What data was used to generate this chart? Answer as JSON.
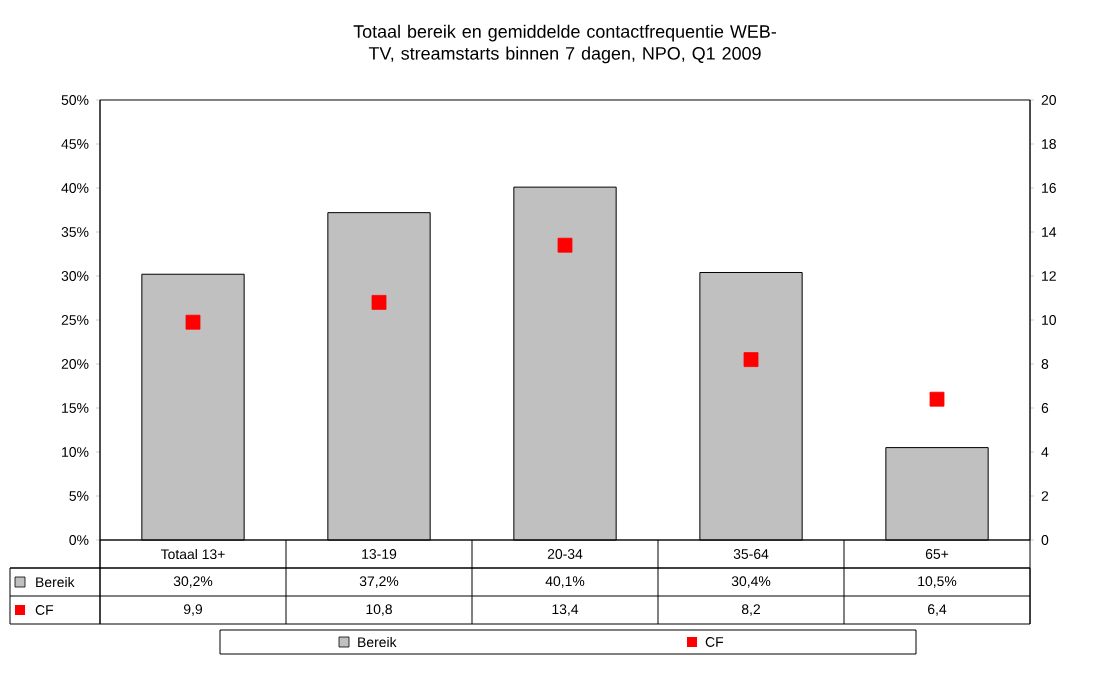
{
  "chart_data": {
    "type": "bar",
    "title": "Totaal bereik en gemiddelde contactfrequentie WEB-TV, streamstarts binnen 7 dagen, NPO, Q1 2009",
    "categories": [
      "Totaal 13+",
      "13-19",
      "20-34",
      "35-64",
      "65+"
    ],
    "series": [
      {
        "name": "Bereik",
        "color": "#c0c0c0",
        "values": [
          30.2,
          37.2,
          40.1,
          30.4,
          10.5
        ],
        "value_labels": [
          "30,2%",
          "37,2%",
          "40,1%",
          "30,4%",
          "10,5%"
        ]
      },
      {
        "name": "CF",
        "type": "scatter",
        "axis": "y2",
        "marker": "square",
        "color": "#ff0000",
        "values": [
          9.9,
          10.8,
          13.4,
          8.2,
          6.4
        ],
        "value_labels": [
          "9,9",
          "10,8",
          "13,4",
          "8,2",
          "6,4"
        ]
      }
    ],
    "ylim": [
      0,
      50
    ],
    "yticks": [
      {
        "value": 0,
        "label": "0%"
      },
      {
        "value": 5,
        "label": "5%"
      },
      {
        "value": 10,
        "label": "10%"
      },
      {
        "value": 15,
        "label": "15%"
      },
      {
        "value": 20,
        "label": "20%"
      },
      {
        "value": 25,
        "label": "25%"
      },
      {
        "value": 30,
        "label": "30%"
      },
      {
        "value": 35,
        "label": "35%"
      },
      {
        "value": 40,
        "label": "40%"
      },
      {
        "value": 45,
        "label": "45%"
      },
      {
        "value": 50,
        "label": "50%"
      }
    ],
    "y2lim": [
      0,
      20
    ],
    "y2ticks": [
      0,
      2,
      4,
      6,
      8,
      10,
      12,
      14,
      16,
      18,
      20
    ],
    "legend": "bottom"
  }
}
